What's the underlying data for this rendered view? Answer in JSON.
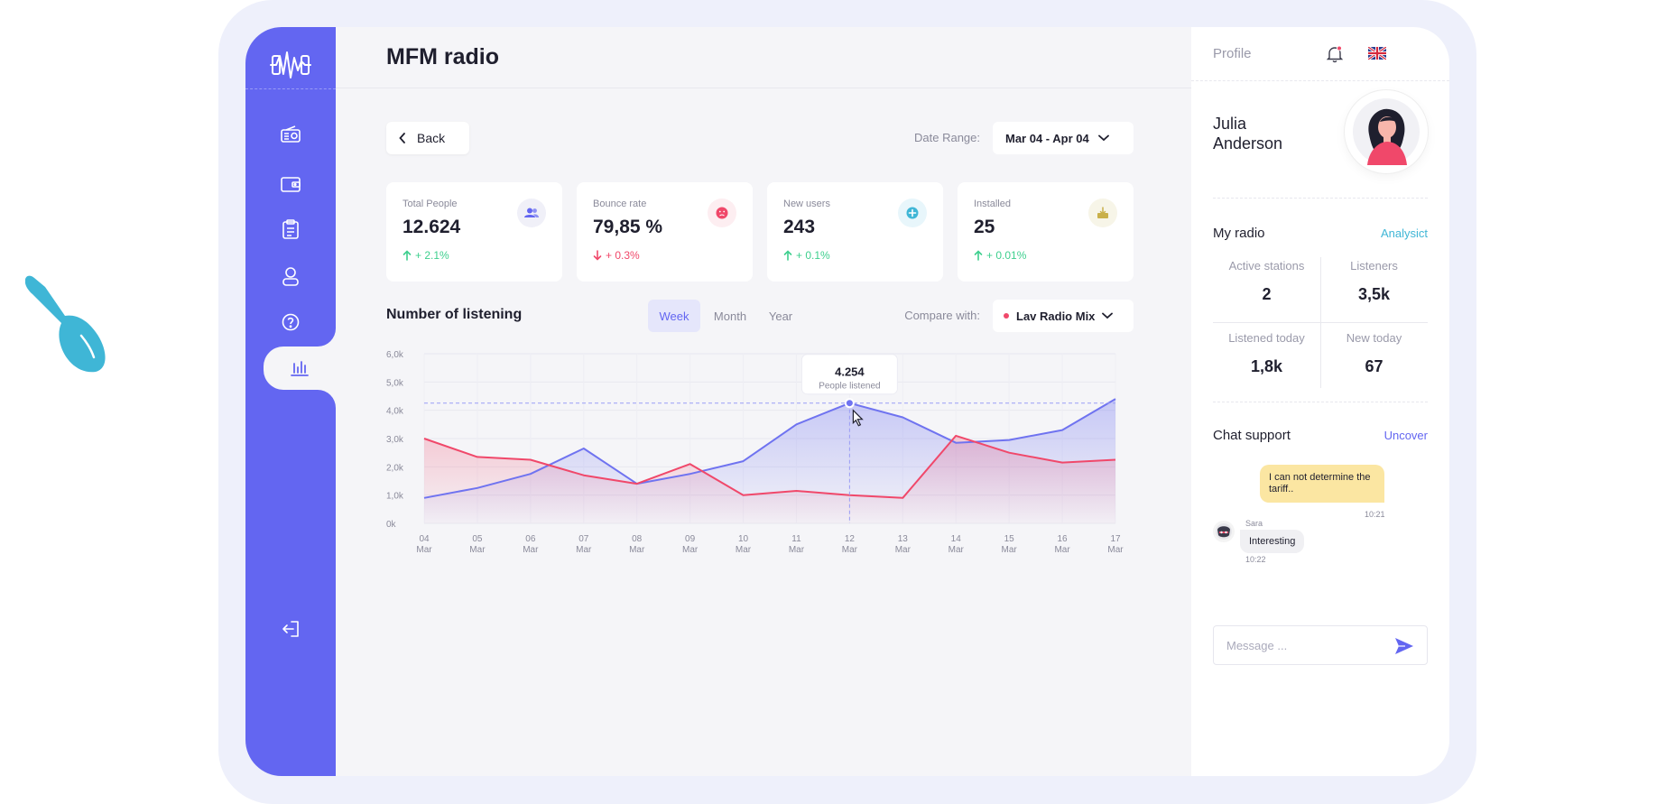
{
  "app": {
    "title": "MFM radio"
  },
  "sidebar": {
    "items": [
      {
        "name": "radio-icon",
        "active": false
      },
      {
        "name": "wallet-icon",
        "active": false
      },
      {
        "name": "clipboard-icon",
        "active": false
      },
      {
        "name": "user-icon",
        "active": false
      },
      {
        "name": "help-icon",
        "active": false
      },
      {
        "name": "analytics-icon",
        "active": true
      }
    ],
    "logout_icon": "logout-icon"
  },
  "toolbar": {
    "back_label": "Back",
    "date_range_label": "Date Range:",
    "date_range_value": "Mar 04 - Apr 04"
  },
  "stats": [
    {
      "label": "Total People",
      "value": "12.624",
      "change": "+ 2.1%",
      "trend": "up",
      "icon": "people-icon"
    },
    {
      "label": "Bounce rate",
      "value": "79,85 %",
      "change": "+ 0.3%",
      "trend": "down",
      "icon": "sad-face-icon"
    },
    {
      "label": "New users",
      "value": "243",
      "change": "+ 0.1%",
      "trend": "up",
      "icon": "plus-circle-icon"
    },
    {
      "label": "Installed",
      "value": "25",
      "change": "+ 0.01%",
      "trend": "up",
      "icon": "install-icon"
    }
  ],
  "listening": {
    "title": "Number of listening",
    "tabs": [
      "Week",
      "Month",
      "Year"
    ],
    "active_tab": "Week",
    "compare_label": "Compare with:",
    "compare_value": "Lav Radio Mix",
    "tooltip_value": "4.254",
    "tooltip_label": "People listened"
  },
  "chart_data": {
    "type": "area",
    "categories": [
      "04 Mar",
      "05 Mar",
      "06 Mar",
      "07 Mar",
      "08 Mar",
      "09 Mar",
      "10 Mar",
      "11 Mar",
      "12 Mar",
      "13 Mar",
      "14 Mar",
      "15 Mar",
      "16 Mar",
      "17 Mar"
    ],
    "x_top": [
      "04",
      "05",
      "06",
      "07",
      "08",
      "09",
      "10",
      "11",
      "12",
      "13",
      "14",
      "15",
      "16",
      "17"
    ],
    "x_bottom": [
      "Mar",
      "Mar",
      "Mar",
      "Mar",
      "Mar",
      "Mar",
      "Mar",
      "Mar",
      "Mar",
      "Mar",
      "Mar",
      "Mar",
      "Mar",
      "Mar"
    ],
    "y_ticks": [
      "6,0k",
      "5,0k",
      "4,0k",
      "3,0k",
      "2,0k",
      "1,0k",
      "0k"
    ],
    "ylim": [
      0,
      6000
    ],
    "series": [
      {
        "color": "#6f73f0",
        "values": [
          900,
          1250,
          1750,
          2650,
          1400,
          1750,
          2200,
          3500,
          4254,
          3750,
          2850,
          2950,
          3300,
          4400
        ]
      },
      {
        "color": "#f0486a",
        "values": [
          3000,
          2350,
          2250,
          1700,
          1400,
          2100,
          1000,
          1150,
          1000,
          900,
          3100,
          2500,
          2150,
          2250
        ]
      }
    ],
    "highlight_index": 8,
    "grid": true
  },
  "profile": {
    "label": "Profile",
    "first_name": "Julia",
    "last_name": "Anderson"
  },
  "my_radio": {
    "title": "My radio",
    "link": "Analysict",
    "cells": [
      {
        "label": "Active stations",
        "value": "2"
      },
      {
        "label": "Listeners",
        "value": "3,5k"
      },
      {
        "label": "Listened today",
        "value": "1,8k"
      },
      {
        "label": "New today",
        "value": "67"
      }
    ]
  },
  "chat": {
    "title": "Chat support",
    "link": "Uncover",
    "messages": [
      {
        "from": "me",
        "text": "I can not determine the tariff..",
        "time": "10:21"
      },
      {
        "from": "Sara",
        "text": "Interesting",
        "time": "10:22"
      }
    ],
    "placeholder": "Message ..."
  },
  "colors": {
    "accent": "#6366f1",
    "up": "#3ecf8e",
    "down": "#f0486a",
    "link": "#3fb6d6"
  }
}
